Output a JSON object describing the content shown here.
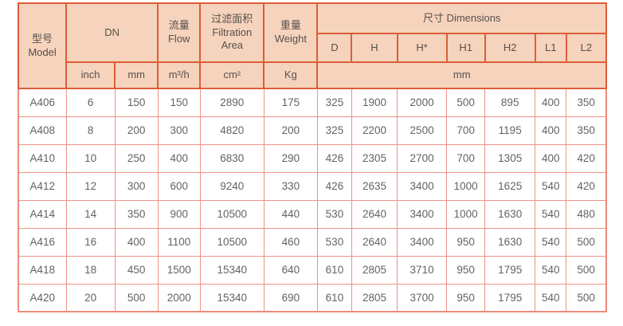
{
  "table": {
    "header": {
      "model_zh": "型号",
      "model_en": "Model",
      "dn": "DN",
      "flow_zh": "流量",
      "flow_en": "Flow",
      "area_zh": "过滤面积",
      "area_en_line1": "Filtration",
      "area_en_line2": "Area",
      "weight_zh": "重量",
      "weight_en": "Weight",
      "dimensions": "尺寸 Dimensions",
      "dim_cols": [
        "D",
        "H",
        "H*",
        "H1",
        "H2",
        "L1",
        "L2"
      ],
      "units": {
        "inch": "inch",
        "mm": "mm",
        "flow": "m³/h",
        "area": "cm²",
        "weight": "Kg",
        "dims_mm": "mm"
      }
    },
    "rows": [
      [
        "A406",
        "6",
        "150",
        "150",
        "2890",
        "175",
        "325",
        "1900",
        "2000",
        "500",
        "895",
        "400",
        "350"
      ],
      [
        "A408",
        "8",
        "200",
        "300",
        "4820",
        "200",
        "325",
        "2200",
        "2500",
        "700",
        "1195",
        "400",
        "350"
      ],
      [
        "A410",
        "10",
        "250",
        "400",
        "6830",
        "290",
        "426",
        "2305",
        "2700",
        "700",
        "1305",
        "400",
        "420"
      ],
      [
        "A412",
        "12",
        "300",
        "600",
        "9240",
        "330",
        "426",
        "2635",
        "3400",
        "1000",
        "1625",
        "540",
        "420"
      ],
      [
        "A414",
        "14",
        "350",
        "900",
        "10500",
        "440",
        "530",
        "2640",
        "3400",
        "1000",
        "1630",
        "540",
        "480"
      ],
      [
        "A416",
        "16",
        "400",
        "1100",
        "10500",
        "460",
        "530",
        "2640",
        "3400",
        "950",
        "1630",
        "540",
        "500"
      ],
      [
        "A418",
        "18",
        "450",
        "1500",
        "15340",
        "640",
        "610",
        "2805",
        "3710",
        "950",
        "1795",
        "540",
        "500"
      ],
      [
        "A420",
        "20",
        "500",
        "2000",
        "15340",
        "690",
        "610",
        "2805",
        "3700",
        "950",
        "1795",
        "540",
        "500"
      ]
    ],
    "colors": {
      "header_bg": "#f6d3bc",
      "header_border": "#dc5e39",
      "body_border": "#ee9384",
      "outer_border": "#ec8b7c",
      "header_text": "#55514d",
      "body_text": "#636363"
    }
  }
}
